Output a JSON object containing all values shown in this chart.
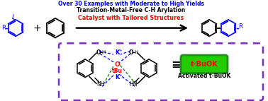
{
  "bg_color": "#ffffff",
  "box_color": "#7b2fbe",
  "box_bg": "#ffffff",
  "green_box_color": "#228B22",
  "green_box_bg": "#22cc00",
  "blue_color": "#0000ff",
  "red_color": "#ff0000",
  "black_color": "#000000",
  "line1": "Catalyst with Tailored Structures",
  "line2": "Transition-Metal-Free C-H Arylation",
  "line3": "Over 30 Examples with Moderate to High Yields",
  "tbuok_label": "t-BuOK",
  "activated_label": "Activated t-BuOK",
  "figsize": [
    3.78,
    1.43
  ],
  "dpi": 100
}
